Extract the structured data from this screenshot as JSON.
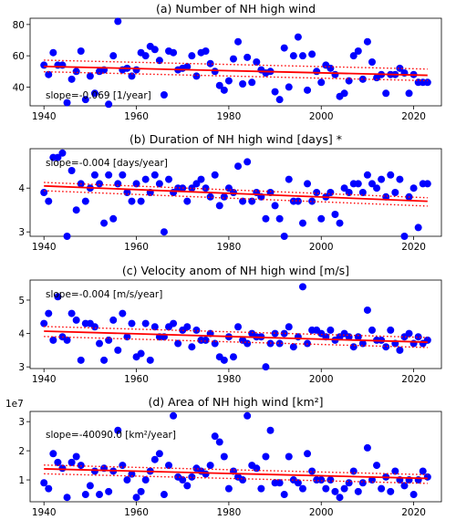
{
  "chart_data": [
    {
      "type": "scatter",
      "title": "(a) Number of NH high wind",
      "annotation": "slope=-0.069 [1/year]",
      "xlim": [
        1937,
        2026
      ],
      "ylim": [
        28,
        84
      ],
      "xticks": [
        1940,
        1960,
        1980,
        2000,
        2020
      ],
      "yticks": [
        40,
        60,
        80
      ],
      "scale_label": "",
      "colors": {
        "points": "#0000ff",
        "trend": "#ff0000"
      },
      "trend": {
        "start": [
          1940,
          53.2
        ],
        "end": [
          2023,
          47.5
        ],
        "upper_offset": 4.0,
        "lower_offset": 3.4
      },
      "x": [
        1940,
        1941,
        1942,
        1943,
        1944,
        1945,
        1946,
        1947,
        1948,
        1949,
        1950,
        1951,
        1952,
        1953,
        1954,
        1955,
        1956,
        1957,
        1958,
        1959,
        1960,
        1961,
        1962,
        1963,
        1964,
        1965,
        1966,
        1967,
        1968,
        1969,
        1970,
        1971,
        1972,
        1973,
        1974,
        1975,
        1976,
        1977,
        1978,
        1979,
        1980,
        1981,
        1982,
        1983,
        1984,
        1985,
        1986,
        1987,
        1988,
        1989,
        1990,
        1991,
        1992,
        1993,
        1994,
        1995,
        1996,
        1997,
        1998,
        1999,
        2000,
        2001,
        2002,
        2003,
        2004,
        2005,
        2006,
        2007,
        2008,
        2009,
        2010,
        2011,
        2012,
        2013,
        2014,
        2015,
        2016,
        2017,
        2018,
        2019,
        2020,
        2021,
        2022,
        2023
      ],
      "values": [
        54,
        48,
        62,
        54,
        54,
        30,
        45,
        50,
        63,
        32,
        47,
        36,
        50,
        51,
        29,
        60,
        82,
        51,
        52,
        47,
        51,
        62,
        60,
        66,
        64,
        57,
        35,
        63,
        62,
        51,
        52,
        53,
        60,
        47,
        62,
        63,
        55,
        50,
        41,
        38,
        44,
        58,
        69,
        42,
        59,
        43,
        56,
        51,
        49,
        50,
        37,
        32,
        65,
        40,
        60,
        72,
        60,
        38,
        61,
        50,
        43,
        54,
        52,
        48,
        34,
        36,
        44,
        60,
        63,
        45,
        69,
        56,
        46,
        48,
        36,
        48,
        48,
        52,
        49,
        36,
        48,
        43,
        43,
        43
      ]
    },
    {
      "type": "scatter",
      "title": "(b) Duration of NH high wind [days] *",
      "annotation": "slope=-0.004 [days/year]",
      "xlim": [
        1937,
        2026
      ],
      "ylim": [
        2.9,
        4.9
      ],
      "xticks": [
        1940,
        1960,
        1980,
        2000,
        2020
      ],
      "yticks": [
        3,
        4
      ],
      "scale_label": "",
      "colors": {
        "points": "#0000ff",
        "trend": "#ff0000"
      },
      "trend": {
        "start": [
          1940,
          4.05
        ],
        "end": [
          2023,
          3.7
        ],
        "upper_offset": 0.08,
        "lower_offset": 0.11
      },
      "x": [
        1940,
        1941,
        1942,
        1943,
        1944,
        1945,
        1946,
        1947,
        1948,
        1949,
        1950,
        1951,
        1952,
        1953,
        1954,
        1955,
        1956,
        1957,
        1958,
        1959,
        1960,
        1961,
        1962,
        1963,
        1964,
        1965,
        1966,
        1967,
        1968,
        1969,
        1970,
        1971,
        1972,
        1973,
        1974,
        1975,
        1976,
        1977,
        1978,
        1979,
        1980,
        1981,
        1982,
        1983,
        1984,
        1985,
        1986,
        1987,
        1988,
        1989,
        1990,
        1991,
        1992,
        1993,
        1994,
        1995,
        1996,
        1997,
        1998,
        1999,
        2000,
        2001,
        2002,
        2003,
        2004,
        2005,
        2006,
        2007,
        2008,
        2009,
        2010,
        2011,
        2012,
        2013,
        2014,
        2015,
        2016,
        2017,
        2018,
        2019,
        2020,
        2021,
        2022,
        2023
      ],
      "values": [
        3.9,
        3.7,
        4.7,
        4.7,
        4.8,
        2.9,
        4.4,
        3.5,
        4.1,
        3.7,
        4.0,
        4.3,
        4.1,
        3.2,
        4.3,
        3.3,
        4.1,
        4.3,
        3.9,
        3.7,
        4.1,
        3.7,
        4.2,
        3.9,
        4.3,
        4.1,
        3.0,
        4.2,
        3.9,
        4.0,
        4.0,
        3.7,
        4.0,
        4.1,
        4.2,
        4.0,
        3.8,
        4.3,
        3.6,
        3.8,
        4.0,
        3.9,
        4.5,
        3.7,
        4.6,
        3.7,
        3.9,
        3.8,
        3.3,
        3.9,
        3.6,
        3.3,
        2.9,
        4.2,
        3.7,
        3.7,
        3.2,
        4.1,
        3.7,
        3.9,
        3.3,
        3.8,
        3.9,
        3.4,
        3.2,
        4.0,
        3.9,
        4.1,
        4.1,
        3.9,
        4.3,
        4.1,
        4.0,
        4.2,
        3.8,
        4.3,
        3.9,
        4.2,
        2.9,
        3.8,
        4.0,
        3.1,
        4.1,
        4.1
      ]
    },
    {
      "type": "scatter",
      "title": "(c) Velocity anom of NH high wind [m/s]",
      "annotation": "slope=-0.004 [m/s/year]",
      "xlim": [
        1937,
        2026
      ],
      "ylim": [
        2.95,
        5.6
      ],
      "xticks": [
        1940,
        1960,
        1980,
        2000,
        2020
      ],
      "yticks": [
        3,
        4,
        5
      ],
      "scale_label": "",
      "colors": {
        "points": "#0000ff",
        "trend": "#ff0000"
      },
      "trend": {
        "start": [
          1940,
          4.07
        ],
        "end": [
          2023,
          3.74
        ],
        "upper_offset": 0.14,
        "lower_offset": 0.16
      },
      "x": [
        1940,
        1941,
        1942,
        1943,
        1944,
        1945,
        1946,
        1947,
        1948,
        1949,
        1950,
        1951,
        1952,
        1953,
        1954,
        1955,
        1956,
        1957,
        1958,
        1959,
        1960,
        1961,
        1962,
        1963,
        1964,
        1965,
        1966,
        1967,
        1968,
        1969,
        1970,
        1971,
        1972,
        1973,
        1974,
        1975,
        1976,
        1977,
        1978,
        1979,
        1980,
        1981,
        1982,
        1983,
        1984,
        1985,
        1986,
        1987,
        1988,
        1989,
        1990,
        1991,
        1992,
        1993,
        1994,
        1995,
        1996,
        1997,
        1998,
        1999,
        2000,
        2001,
        2002,
        2003,
        2004,
        2005,
        2006,
        2007,
        2008,
        2009,
        2010,
        2011,
        2012,
        2013,
        2014,
        2015,
        2016,
        2017,
        2018,
        2019,
        2020,
        2021,
        2022,
        2023
      ],
      "values": [
        4.3,
        4.6,
        3.8,
        5.1,
        3.9,
        3.8,
        4.6,
        4.4,
        3.2,
        4.3,
        4.3,
        4.2,
        3.7,
        3.2,
        3.8,
        4.4,
        3.5,
        4.6,
        3.9,
        4.3,
        3.3,
        3.4,
        4.3,
        3.2,
        4.2,
        3.9,
        3.9,
        4.2,
        4.3,
        3.7,
        4.1,
        4.2,
        3.6,
        4.1,
        3.8,
        3.8,
        4.0,
        3.7,
        3.3,
        3.2,
        3.9,
        3.3,
        4.2,
        3.8,
        3.7,
        4.0,
        3.9,
        3.9,
        3.0,
        3.7,
        4.0,
        3.7,
        4.0,
        4.2,
        3.6,
        3.9,
        5.4,
        3.7,
        4.1,
        4.1,
        4.0,
        3.9,
        4.1,
        3.8,
        3.9,
        4.0,
        3.9,
        3.6,
        3.9,
        3.7,
        4.7,
        4.1,
        3.8,
        3.8,
        3.6,
        4.1,
        3.7,
        3.5,
        3.9,
        4.0,
        3.7,
        3.9,
        3.7,
        3.8
      ]
    },
    {
      "type": "scatter",
      "title": "(d) Area of NH high wind [km²]",
      "annotation": "slope=-40090.0 [km²/year]",
      "xlim": [
        1937,
        2026
      ],
      "ylim": [
        0.25,
        3.35
      ],
      "xticks": [
        1940,
        1960,
        1980,
        2000,
        2020
      ],
      "yticks": [
        1,
        2,
        3
      ],
      "scale_label": "1e7",
      "colors": {
        "points": "#0000ff",
        "trend": "#ff0000"
      },
      "trend": {
        "start": [
          1940,
          1.38
        ],
        "end": [
          2023,
          1.05
        ],
        "upper_offset": 0.13,
        "lower_offset": 0.17
      },
      "x": [
        1940,
        1941,
        1942,
        1943,
        1944,
        1945,
        1946,
        1947,
        1948,
        1949,
        1950,
        1951,
        1952,
        1953,
        1954,
        1955,
        1956,
        1957,
        1958,
        1959,
        1960,
        1961,
        1962,
        1963,
        1964,
        1965,
        1966,
        1967,
        1968,
        1969,
        1970,
        1971,
        1972,
        1973,
        1974,
        1975,
        1976,
        1977,
        1978,
        1979,
        1980,
        1981,
        1982,
        1983,
        1984,
        1985,
        1986,
        1987,
        1988,
        1989,
        1990,
        1991,
        1992,
        1993,
        1994,
        1995,
        1996,
        1997,
        1998,
        1999,
        2000,
        2001,
        2002,
        2003,
        2004,
        2005,
        2006,
        2007,
        2008,
        2009,
        2010,
        2011,
        2012,
        2013,
        2014,
        2015,
        2016,
        2017,
        2018,
        2019,
        2020,
        2021,
        2022,
        2023
      ],
      "values": [
        0.9,
        0.7,
        1.9,
        1.6,
        1.4,
        0.4,
        1.6,
        1.8,
        1.5,
        0.5,
        0.8,
        1.3,
        0.5,
        1.4,
        0.6,
        1.3,
        2.7,
        1.5,
        1.0,
        1.2,
        0.4,
        0.6,
        1.0,
        1.3,
        1.7,
        1.9,
        0.5,
        1.5,
        3.2,
        1.1,
        1.0,
        0.8,
        1.1,
        1.4,
        1.3,
        1.2,
        1.5,
        2.5,
        2.3,
        1.8,
        0.7,
        1.3,
        1.1,
        1.0,
        3.2,
        1.5,
        1.4,
        0.7,
        1.8,
        2.7,
        0.9,
        0.9,
        0.5,
        1.8,
        1.0,
        0.9,
        0.7,
        1.9,
        1.3,
        1.0,
        1.0,
        0.7,
        1.0,
        0.6,
        0.4,
        0.7,
        0.9,
        1.3,
        0.6,
        0.9,
        2.1,
        1.0,
        1.5,
        0.7,
        1.1,
        0.6,
        1.3,
        1.0,
        0.8,
        1.0,
        0.5,
        1.0,
        1.3,
        1.1
      ]
    }
  ]
}
